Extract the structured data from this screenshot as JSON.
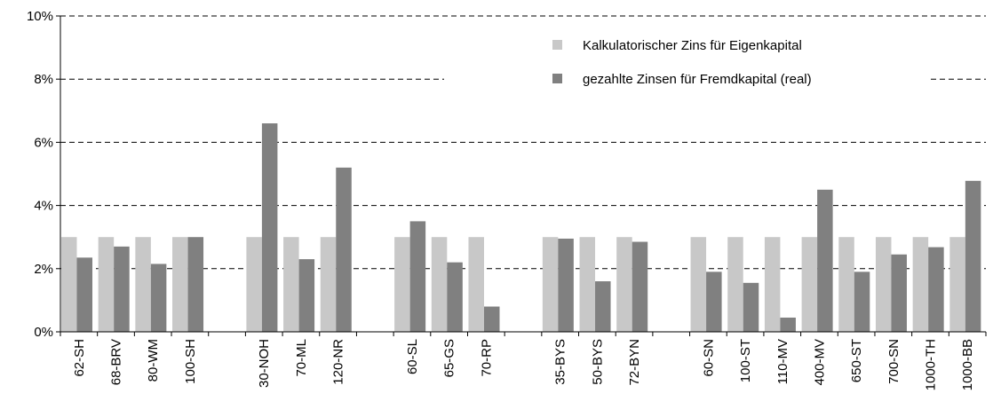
{
  "chart_data": {
    "type": "bar",
    "categories": [
      "62-SH",
      "68-BRV",
      "80-WM",
      "100-SH",
      null,
      "30-NOH",
      "70-ML",
      "120-NR",
      null,
      "60-SL",
      "65-GS",
      "70-RP",
      null,
      "35-BYS",
      "50-BYS",
      "72-BYN",
      null,
      "60-SN",
      "100-ST",
      "110-MV",
      "400-MV",
      "650-ST",
      "700-SN",
      "1000-TH",
      "1000-BB"
    ],
    "series": [
      {
        "name": "Kalkulatorischer Zins für Eigenkapital",
        "color": "#c8c8c8",
        "values": [
          3,
          3,
          3,
          3,
          null,
          3,
          3,
          3,
          null,
          3,
          3,
          3,
          null,
          3,
          3,
          3,
          null,
          3,
          3,
          3,
          3,
          3,
          3,
          3,
          3
        ]
      },
      {
        "name": "gezahlte Zinsen für Fremdkapital (real)",
        "color": "#808080",
        "values": [
          2.35,
          2.7,
          2.15,
          3.0,
          null,
          6.6,
          2.3,
          5.2,
          null,
          3.5,
          2.2,
          0.8,
          null,
          2.95,
          1.6,
          2.85,
          null,
          1.9,
          1.55,
          0.45,
          4.5,
          1.9,
          2.45,
          2.68,
          4.78
        ]
      }
    ],
    "ylim": [
      0,
      10
    ],
    "yticks": [
      {
        "value": 0,
        "label": "0%"
      },
      {
        "value": 2,
        "label": "2%"
      },
      {
        "value": 4,
        "label": "4%"
      },
      {
        "value": 6,
        "label": "6%"
      },
      {
        "value": 8,
        "label": "8%"
      },
      {
        "value": 10,
        "label": "10%"
      }
    ],
    "grid": true,
    "legend": "top-right"
  }
}
